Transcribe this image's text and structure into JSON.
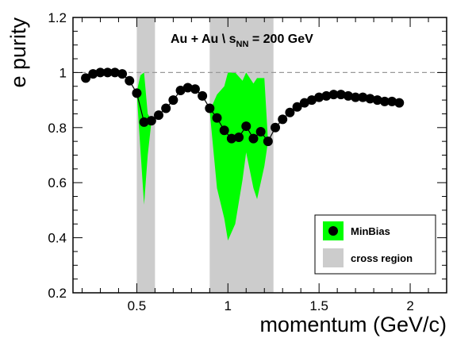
{
  "chart_data": {
    "type": "line",
    "xlabel": "momentum (GeV/c)",
    "ylabel": "e purity",
    "xlim": [
      0.15,
      2.2
    ],
    "ylim": [
      0.2,
      1.2
    ],
    "x_ticks": [
      0.5,
      1,
      1.5,
      2
    ],
    "x_tick_labels": [
      "0.5",
      "1",
      "1.5",
      "2"
    ],
    "y_ticks": [
      0.2,
      0.4,
      0.6,
      0.8,
      1.0,
      1.2
    ],
    "y_tick_labels": [
      "0.2",
      "0.4",
      "0.6",
      "0.8",
      "1",
      "1.2"
    ],
    "reference_line": {
      "y": 1.0,
      "style": "dashed",
      "color": "#999999"
    },
    "annotation": {
      "main": "Au + Au   \\ s",
      "subscript": "NN",
      "rest": " = 200 GeV"
    },
    "cross_regions": [
      [
        0.5,
        0.6
      ],
      [
        0.9,
        1.25
      ]
    ],
    "series": [
      {
        "name": "MinBias",
        "marker": "circle",
        "color": "#000000",
        "points": [
          [
            0.22,
            0.98
          ],
          [
            0.26,
            0.995
          ],
          [
            0.3,
            1.0
          ],
          [
            0.34,
            1.0
          ],
          [
            0.38,
            1.0
          ],
          [
            0.42,
            0.995
          ],
          [
            0.46,
            0.97
          ],
          [
            0.5,
            0.925
          ],
          [
            0.54,
            0.82
          ],
          [
            0.58,
            0.825
          ],
          [
            0.62,
            0.845
          ],
          [
            0.66,
            0.87
          ],
          [
            0.7,
            0.9
          ],
          [
            0.74,
            0.935
          ],
          [
            0.78,
            0.945
          ],
          [
            0.82,
            0.94
          ],
          [
            0.86,
            0.915
          ],
          [
            0.9,
            0.87
          ],
          [
            0.94,
            0.835
          ],
          [
            0.98,
            0.79
          ],
          [
            1.02,
            0.76
          ],
          [
            1.06,
            0.765
          ],
          [
            1.1,
            0.805
          ],
          [
            1.14,
            0.76
          ],
          [
            1.18,
            0.785
          ],
          [
            1.22,
            0.75
          ],
          [
            1.26,
            0.8
          ],
          [
            1.3,
            0.83
          ],
          [
            1.34,
            0.855
          ],
          [
            1.38,
            0.875
          ],
          [
            1.42,
            0.89
          ],
          [
            1.46,
            0.9
          ],
          [
            1.5,
            0.91
          ],
          [
            1.54,
            0.915
          ],
          [
            1.58,
            0.92
          ],
          [
            1.62,
            0.92
          ],
          [
            1.66,
            0.915
          ],
          [
            1.7,
            0.91
          ],
          [
            1.74,
            0.91
          ],
          [
            1.78,
            0.905
          ],
          [
            1.82,
            0.9
          ],
          [
            1.86,
            0.895
          ],
          [
            1.9,
            0.895
          ],
          [
            1.94,
            0.89
          ]
        ],
        "band_color": "#00ff00",
        "band_upper": [
          [
            0.5,
            0.93
          ],
          [
            0.52,
            0.99
          ],
          [
            0.54,
            1.0
          ],
          [
            0.56,
            0.85
          ],
          [
            0.58,
            0.83
          ],
          [
            0.9,
            0.86
          ],
          [
            0.94,
            0.92
          ],
          [
            0.98,
            0.95
          ],
          [
            1.0,
            1.0
          ],
          [
            1.04,
            1.0
          ],
          [
            1.08,
            0.97
          ],
          [
            1.1,
            1.0
          ],
          [
            1.14,
            0.96
          ],
          [
            1.16,
            0.98
          ],
          [
            1.2,
            0.98
          ],
          [
            1.22,
            0.75
          ]
        ],
        "band_lower": [
          [
            0.58,
            0.82
          ],
          [
            0.56,
            0.7
          ],
          [
            0.54,
            0.52
          ],
          [
            0.52,
            0.72
          ],
          [
            0.5,
            0.925
          ],
          [
            1.22,
            0.75
          ],
          [
            1.2,
            0.66
          ],
          [
            1.16,
            0.54
          ],
          [
            1.14,
            0.58
          ],
          [
            1.1,
            0.71
          ],
          [
            1.08,
            0.61
          ],
          [
            1.04,
            0.45
          ],
          [
            1.0,
            0.39
          ],
          [
            0.98,
            0.47
          ],
          [
            0.94,
            0.58
          ],
          [
            0.9,
            0.86
          ]
        ]
      }
    ],
    "legend": {
      "position": "bottom-right",
      "entries": [
        {
          "label": "MinBias",
          "swatch": "band-with-marker",
          "color": "#00ff00"
        },
        {
          "label": "cross region",
          "swatch": "box",
          "color": "#cccccc"
        }
      ]
    }
  }
}
